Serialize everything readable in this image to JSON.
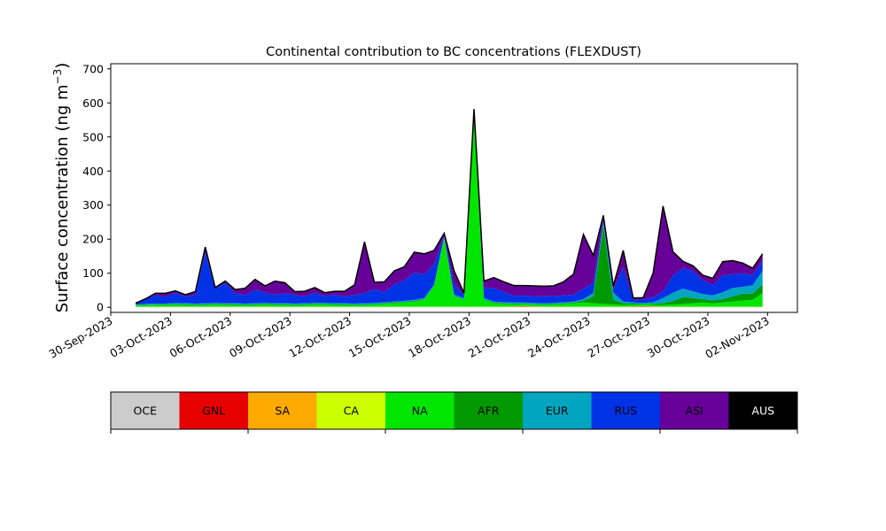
{
  "chart_data": {
    "type": "area",
    "stacked": true,
    "title": "Continental contribution to BC concentrations (FLEXDUST)",
    "ylabel_text": "Surface concentration (ng m",
    "ylabel_exp": "−3",
    "ylabel_close": ")",
    "xlabel": "",
    "ylim": [
      -15,
      715
    ],
    "xlim": [
      "2023-09-30T00:00",
      "2023-11-03T12:00"
    ],
    "yticks": [
      0,
      100,
      200,
      300,
      400,
      500,
      600,
      700
    ],
    "xticks": [
      {
        "date": "2023-09-30",
        "label": "30-Sep-2023"
      },
      {
        "date": "2023-10-03",
        "label": "03-Oct-2023"
      },
      {
        "date": "2023-10-06",
        "label": "06-Oct-2023"
      },
      {
        "date": "2023-10-09",
        "label": "09-Oct-2023"
      },
      {
        "date": "2023-10-12",
        "label": "12-Oct-2023"
      },
      {
        "date": "2023-10-15",
        "label": "15-Oct-2023"
      },
      {
        "date": "2023-10-18",
        "label": "18-Oct-2023"
      },
      {
        "date": "2023-10-21",
        "label": "21-Oct-2023"
      },
      {
        "date": "2023-10-24",
        "label": "24-Oct-2023"
      },
      {
        "date": "2023-10-27",
        "label": "27-Oct-2023"
      },
      {
        "date": "2023-10-30",
        "label": "30-Oct-2023"
      },
      {
        "date": "2023-11-02",
        "label": "02-Nov-2023"
      }
    ],
    "grid": false,
    "legend_placement": "bottom colorbar",
    "series_colors": {
      "OCE": "#cccccc",
      "GNL": "#e60000",
      "SA": "#ffaa00",
      "CA": "#ccff00",
      "NA": "#00e600",
      "AFR": "#009900",
      "EUR": "#00a6bf",
      "RUS": "#0033e6",
      "ASI": "#660099",
      "AUS": "#000000"
    },
    "x": [
      "2023-10-01T06:00",
      "2023-10-01T18:00",
      "2023-10-02T06:00",
      "2023-10-02T18:00",
      "2023-10-03T06:00",
      "2023-10-03T18:00",
      "2023-10-04T06:00",
      "2023-10-04T18:00",
      "2023-10-05T06:00",
      "2023-10-05T18:00",
      "2023-10-06T06:00",
      "2023-10-06T18:00",
      "2023-10-07T06:00",
      "2023-10-07T18:00",
      "2023-10-08T06:00",
      "2023-10-08T18:00",
      "2023-10-09T06:00",
      "2023-10-09T18:00",
      "2023-10-10T06:00",
      "2023-10-10T18:00",
      "2023-10-11T06:00",
      "2023-10-11T18:00",
      "2023-10-12T06:00",
      "2023-10-12T18:00",
      "2023-10-13T06:00",
      "2023-10-13T18:00",
      "2023-10-14T06:00",
      "2023-10-14T18:00",
      "2023-10-15T06:00",
      "2023-10-15T18:00",
      "2023-10-16T06:00",
      "2023-10-16T18:00",
      "2023-10-17T06:00",
      "2023-10-17T18:00",
      "2023-10-18T06:00",
      "2023-10-18T18:00",
      "2023-10-19T06:00",
      "2023-10-19T18:00",
      "2023-10-20T06:00",
      "2023-10-20T18:00",
      "2023-10-21T06:00",
      "2023-10-21T18:00",
      "2023-10-22T06:00",
      "2023-10-22T18:00",
      "2023-10-23T06:00",
      "2023-10-23T18:00",
      "2023-10-24T06:00",
      "2023-10-24T18:00",
      "2023-10-25T06:00",
      "2023-10-25T18:00",
      "2023-10-26T06:00",
      "2023-10-26T18:00",
      "2023-10-27T06:00",
      "2023-10-27T18:00",
      "2023-10-28T06:00",
      "2023-10-28T18:00",
      "2023-10-29T06:00",
      "2023-10-29T18:00",
      "2023-10-30T06:00",
      "2023-10-30T18:00",
      "2023-10-31T06:00",
      "2023-10-31T18:00",
      "2023-11-01T06:00",
      "2023-11-01T18:00"
    ],
    "series": [
      {
        "name": "OCE",
        "values": [
          1,
          1,
          1,
          1,
          1,
          1,
          1,
          1,
          1,
          1,
          1,
          1,
          1,
          1,
          1,
          1,
          1,
          1,
          1,
          1,
          1,
          1,
          1,
          1,
          1,
          1,
          1,
          1,
          1,
          1,
          1,
          1,
          1,
          1,
          1,
          1,
          1,
          1,
          1,
          1,
          1,
          1,
          1,
          1,
          1,
          1,
          1,
          1,
          1,
          1,
          1,
          1,
          1,
          1,
          1,
          1,
          1,
          1,
          1,
          1,
          1,
          1,
          1,
          1
        ]
      },
      {
        "name": "GNL",
        "values": [
          0,
          0,
          0,
          0,
          0,
          0,
          0,
          0,
          0,
          0,
          0,
          0,
          0,
          0,
          0,
          0,
          0,
          0,
          0,
          0,
          0,
          0,
          0,
          0,
          0,
          0,
          0,
          0,
          0,
          0,
          0,
          0,
          0,
          0,
          0,
          0,
          0,
          0,
          1,
          2,
          1,
          0,
          0,
          0,
          0,
          0,
          0,
          0,
          0,
          0,
          1,
          2,
          1,
          0,
          0,
          0,
          0,
          0,
          0,
          0,
          0,
          0,
          0,
          0
        ]
      },
      {
        "name": "SA",
        "values": [
          0,
          0,
          0,
          0,
          0,
          0,
          0,
          0,
          0,
          0,
          0,
          0,
          0,
          0,
          0,
          0,
          0,
          0,
          0,
          0,
          0,
          0,
          0,
          0,
          0,
          0,
          0,
          0,
          0,
          0,
          0,
          0,
          0,
          0,
          0,
          0,
          0,
          0,
          0,
          0,
          0,
          0,
          0,
          0,
          0,
          0,
          0,
          0,
          0,
          0,
          0,
          0,
          0,
          0,
          0,
          0,
          0,
          0,
          0,
          0,
          0,
          0,
          0,
          0
        ]
      },
      {
        "name": "CA",
        "values": [
          1,
          1,
          1,
          1,
          1,
          1,
          1,
          1,
          1,
          1,
          1,
          1,
          1,
          1,
          1,
          1,
          1,
          1,
          1,
          1,
          1,
          1,
          1,
          1,
          1,
          1,
          1,
          1,
          1,
          1,
          1,
          1,
          1,
          1,
          1,
          1,
          1,
          1,
          1,
          1,
          1,
          1,
          1,
          1,
          1,
          1,
          1,
          1,
          1,
          1,
          1,
          1,
          1,
          1,
          1,
          1,
          1,
          1,
          1,
          1,
          1,
          1,
          1,
          1
        ]
      },
      {
        "name": "NA",
        "values": [
          3,
          4,
          5,
          5,
          6,
          5,
          4,
          5,
          6,
          5,
          5,
          4,
          5,
          6,
          5,
          5,
          4,
          5,
          6,
          6,
          5,
          5,
          4,
          5,
          6,
          8,
          10,
          12,
          15,
          20,
          60,
          200,
          30,
          20,
          560,
          20,
          10,
          8,
          6,
          5,
          5,
          5,
          6,
          8,
          10,
          12,
          10,
          8,
          6,
          5,
          5,
          5,
          4,
          5,
          6,
          8,
          10,
          12,
          10,
          12,
          15,
          18,
          20,
          40
        ]
      },
      {
        "name": "AFR",
        "values": [
          1,
          1,
          1,
          1,
          2,
          2,
          2,
          2,
          2,
          2,
          2,
          2,
          2,
          2,
          2,
          2,
          2,
          2,
          2,
          2,
          2,
          2,
          2,
          2,
          2,
          2,
          2,
          2,
          2,
          2,
          2,
          2,
          2,
          2,
          2,
          2,
          2,
          2,
          2,
          2,
          2,
          2,
          2,
          2,
          2,
          5,
          20,
          230,
          15,
          5,
          3,
          2,
          3,
          5,
          10,
          20,
          15,
          10,
          8,
          10,
          15,
          20,
          18,
          25
        ]
      },
      {
        "name": "EUR",
        "values": [
          2,
          3,
          3,
          3,
          3,
          3,
          3,
          3,
          3,
          3,
          3,
          3,
          3,
          3,
          3,
          3,
          3,
          3,
          3,
          3,
          3,
          3,
          3,
          3,
          3,
          3,
          3,
          3,
          3,
          3,
          3,
          3,
          3,
          3,
          3,
          3,
          3,
          3,
          3,
          3,
          3,
          3,
          3,
          3,
          3,
          5,
          10,
          10,
          20,
          5,
          3,
          2,
          5,
          15,
          25,
          25,
          20,
          15,
          15,
          20,
          25,
          20,
          25,
          40
        ]
      },
      {
        "name": "RUS",
        "values": [
          4,
          15,
          25,
          20,
          30,
          20,
          25,
          150,
          40,
          60,
          30,
          25,
          40,
          30,
          25,
          30,
          25,
          20,
          30,
          20,
          25,
          20,
          25,
          30,
          40,
          30,
          50,
          60,
          80,
          70,
          60,
          5,
          30,
          10,
          10,
          30,
          40,
          30,
          20,
          20,
          20,
          20,
          20,
          20,
          20,
          30,
          30,
          10,
          10,
          100,
          8,
          10,
          15,
          20,
          50,
          60,
          60,
          40,
          30,
          50,
          40,
          40,
          30,
          30
        ]
      },
      {
        "name": "ASI",
        "values": [
          0,
          0,
          5,
          10,
          5,
          5,
          10,
          15,
          5,
          5,
          10,
          20,
          30,
          20,
          40,
          30,
          10,
          15,
          15,
          10,
          10,
          15,
          30,
          150,
          20,
          30,
          40,
          40,
          60,
          60,
          40,
          5,
          40,
          5,
          5,
          20,
          30,
          30,
          30,
          30,
          30,
          30,
          30,
          40,
          60,
          160,
          80,
          10,
          10,
          50,
          5,
          5,
          70,
          250,
          70,
          20,
          15,
          15,
          20,
          40,
          40,
          30,
          20,
          20
        ]
      },
      {
        "name": "AUS",
        "values": [
          0,
          0,
          0,
          0,
          0,
          0,
          0,
          0,
          0,
          0,
          0,
          0,
          0,
          0,
          0,
          0,
          0,
          0,
          0,
          0,
          0,
          0,
          0,
          0,
          0,
          0,
          0,
          0,
          0,
          0,
          0,
          0,
          0,
          0,
          0,
          0,
          0,
          0,
          0,
          0,
          0,
          0,
          0,
          0,
          0,
          0,
          0,
          0,
          0,
          0,
          0,
          0,
          0,
          0,
          0,
          0,
          0,
          0,
          0,
          0,
          0,
          0,
          0,
          0
        ]
      }
    ]
  }
}
